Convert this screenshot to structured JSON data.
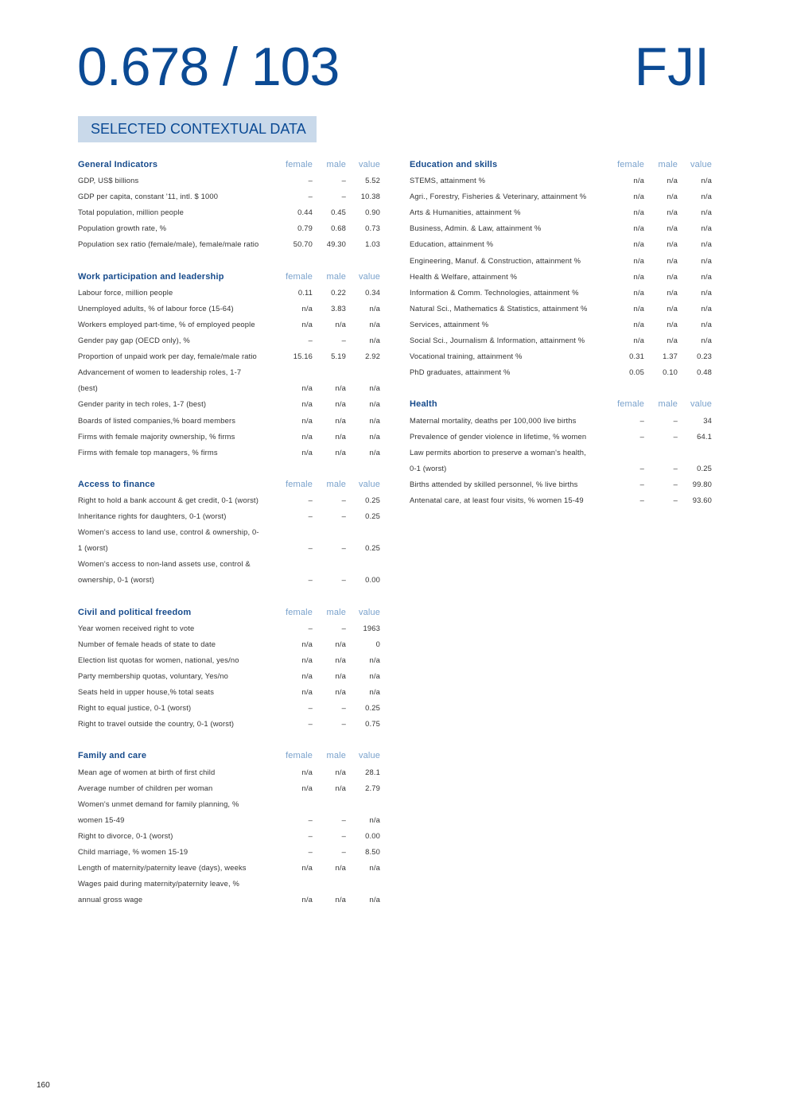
{
  "header": {
    "score": "0.678 / 103",
    "country_code": "FJI"
  },
  "banner": "SELECTED CONTEXTUAL DATA",
  "columns": {
    "female": "female",
    "male": "male",
    "value": "value"
  },
  "left_sections": [
    {
      "title": "General Indicators",
      "rows": [
        {
          "label": "GDP, US$ billions",
          "female": "–",
          "male": "–",
          "value": "5.52"
        },
        {
          "label": "GDP per capita, constant '11, intl. $ 1000",
          "female": "–",
          "male": "–",
          "value": "10.38"
        },
        {
          "label": "Total population, million people",
          "female": "0.44",
          "male": "0.45",
          "value": "0.90"
        },
        {
          "label": "Population growth rate, %",
          "female": "0.79",
          "male": "0.68",
          "value": "0.73"
        },
        {
          "label": "Population sex ratio (female/male), female/male ratio",
          "female": "50.70",
          "male": "49.30",
          "value": "1.03"
        }
      ]
    },
    {
      "title": "Work participation and leadership",
      "rows": [
        {
          "label": "Labour force, million people",
          "female": "0.11",
          "male": "0.22",
          "value": "0.34"
        },
        {
          "label": "Unemployed adults, % of labour force (15-64)",
          "female": "n/a",
          "male": "3.83",
          "value": "n/a"
        },
        {
          "label": "Workers employed part-time, % of employed people",
          "female": "n/a",
          "male": "n/a",
          "value": "n/a"
        },
        {
          "label": "Gender pay gap (OECD only), %",
          "female": "–",
          "male": "–",
          "value": "n/a"
        },
        {
          "label": "Proportion of unpaid work per day, female/male ratio",
          "female": "15.16",
          "male": "5.19",
          "value": "2.92"
        },
        {
          "label": "Advancement of women to leadership roles, 1-7",
          "label2": "(best)",
          "female": "n/a",
          "male": "n/a",
          "value": "n/a"
        },
        {
          "label": "Gender parity in tech roles, 1-7 (best)",
          "female": "n/a",
          "male": "n/a",
          "value": "n/a"
        },
        {
          "label": "Boards of listed companies,% board members",
          "female": "n/a",
          "male": "n/a",
          "value": "n/a"
        },
        {
          "label": "Firms with female majority ownership, % firms",
          "female": "n/a",
          "male": "n/a",
          "value": "n/a"
        },
        {
          "label": "Firms with female top managers, % firms",
          "female": "n/a",
          "male": "n/a",
          "value": "n/a"
        }
      ]
    },
    {
      "title": "Access to finance",
      "rows": [
        {
          "label": "Right to hold a bank account & get credit, 0-1 (worst)",
          "female": "–",
          "male": "–",
          "value": "0.25"
        },
        {
          "label": "Inheritance rights for daughters, 0-1 (worst)",
          "female": "–",
          "male": "–",
          "value": "0.25"
        },
        {
          "label": "Women's access to land use, control & ownership, 0-",
          "label2": "1 (worst)",
          "female": "–",
          "male": "–",
          "value": "0.25"
        },
        {
          "label": "Women's access to non-land assets use, control &",
          "label2": "ownership, 0-1 (worst)",
          "female": "–",
          "male": "–",
          "value": "0.00"
        }
      ]
    },
    {
      "title": "Civil and political freedom",
      "rows": [
        {
          "label": "Year women received right to vote",
          "female": "–",
          "male": "–",
          "value": "1963"
        },
        {
          "label": "Number of female heads of state to date",
          "female": "n/a",
          "male": "n/a",
          "value": "0"
        },
        {
          "label": "Election list quotas for women, national, yes/no",
          "female": "n/a",
          "male": "n/a",
          "value": "n/a"
        },
        {
          "label": "Party membership quotas, voluntary, Yes/no",
          "female": "n/a",
          "male": "n/a",
          "value": "n/a"
        },
        {
          "label": "Seats held in upper house,% total seats",
          "female": "n/a",
          "male": "n/a",
          "value": "n/a"
        },
        {
          "label": "Right to equal justice, 0-1 (worst)",
          "female": "–",
          "male": "–",
          "value": "0.25"
        },
        {
          "label": "Right to travel outside the country, 0-1 (worst)",
          "female": "–",
          "male": "–",
          "value": "0.75"
        }
      ]
    },
    {
      "title": "Family and care",
      "rows": [
        {
          "label": "Mean age of women at birth of first child",
          "female": "n/a",
          "male": "n/a",
          "value": "28.1"
        },
        {
          "label": "Average number of children per woman",
          "female": "n/a",
          "male": "n/a",
          "value": "2.79"
        },
        {
          "label": "Women's unmet demand for family planning, %",
          "label2": "women 15-49",
          "female": "–",
          "male": "–",
          "value": "n/a"
        },
        {
          "label": "Right to divorce, 0-1 (worst)",
          "female": "–",
          "male": "–",
          "value": "0.00"
        },
        {
          "label": "Child marriage, % women 15-19",
          "female": "–",
          "male": "–",
          "value": "8.50"
        },
        {
          "label": "Length of maternity/paternity leave (days), weeks",
          "female": "n/a",
          "male": "n/a",
          "value": "n/a"
        },
        {
          "label": "Wages paid during maternity/paternity leave, %",
          "label2": "annual gross wage",
          "female": "n/a",
          "male": "n/a",
          "value": "n/a"
        }
      ]
    }
  ],
  "right_sections": [
    {
      "title": "Education and skills",
      "rows": [
        {
          "label": "STEMS, attainment %",
          "female": "n/a",
          "male": "n/a",
          "value": "n/a"
        },
        {
          "label": "Agri., Forestry, Fisheries & Veterinary, attainment %",
          "female": "n/a",
          "male": "n/a",
          "value": "n/a"
        },
        {
          "label": "Arts & Humanities, attainment %",
          "female": "n/a",
          "male": "n/a",
          "value": "n/a"
        },
        {
          "label": "Business, Admin. & Law, attainment %",
          "female": "n/a",
          "male": "n/a",
          "value": "n/a"
        },
        {
          "label": "Education, attainment %",
          "female": "n/a",
          "male": "n/a",
          "value": "n/a"
        },
        {
          "label": "Engineering, Manuf. & Construction, attainment %",
          "female": "n/a",
          "male": "n/a",
          "value": "n/a"
        },
        {
          "label": "Health & Welfare, attainment %",
          "female": "n/a",
          "male": "n/a",
          "value": "n/a"
        },
        {
          "label": "Information & Comm. Technologies, attainment %",
          "female": "n/a",
          "male": "n/a",
          "value": "n/a"
        },
        {
          "label": "Natural Sci., Mathematics & Statistics, attainment %",
          "female": "n/a",
          "male": "n/a",
          "value": "n/a"
        },
        {
          "label": "Services, attainment %",
          "female": "n/a",
          "male": "n/a",
          "value": "n/a"
        },
        {
          "label": "Social Sci., Journalism & Information, attainment %",
          "female": "n/a",
          "male": "n/a",
          "value": "n/a"
        },
        {
          "label": "Vocational training, attainment %",
          "female": "0.31",
          "male": "1.37",
          "value": "0.23"
        },
        {
          "label": "PhD graduates, attainment %",
          "female": "0.05",
          "male": "0.10",
          "value": "0.48"
        }
      ]
    },
    {
      "title": "Health",
      "rows": [
        {
          "label": "Maternal mortality, deaths per 100,000 live births",
          "female": "–",
          "male": "–",
          "value": "34"
        },
        {
          "label": "Prevalence of gender violence in lifetime, % women",
          "female": "–",
          "male": "–",
          "value": "64.1"
        },
        {
          "label": "Law permits abortion to preserve a woman's health,",
          "label2": "0-1 (worst)",
          "female": "–",
          "male": "–",
          "value": "0.25"
        },
        {
          "label": "Births attended by skilled personnel, % live births",
          "female": "–",
          "male": "–",
          "value": "99.80"
        },
        {
          "label": "Antenatal care, at least four visits, % women 15-49",
          "female": "–",
          "male": "–",
          "value": "93.60"
        }
      ]
    }
  ],
  "page_number": "160",
  "colors": {
    "brand_blue": "#0b4a94",
    "banner_bg": "#c9d9ea",
    "column_header": "#7aa2cc"
  }
}
